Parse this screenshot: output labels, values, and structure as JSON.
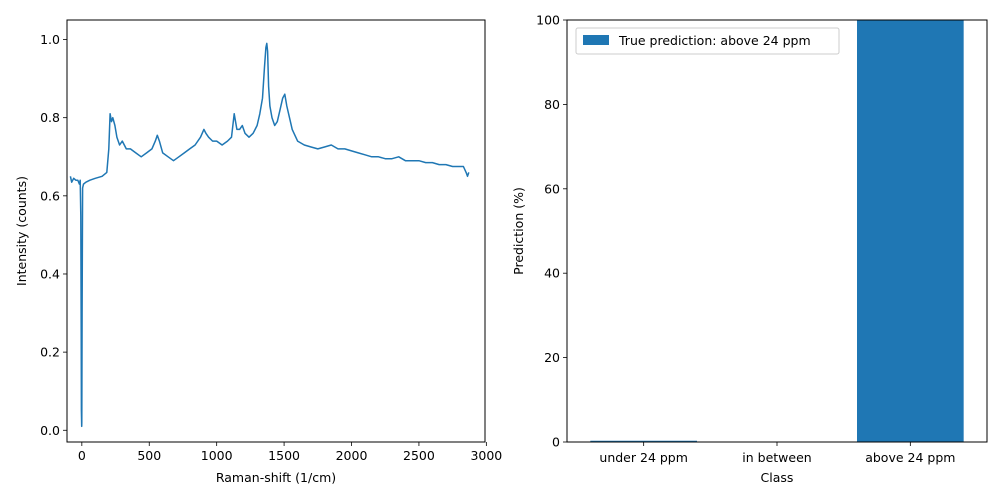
{
  "colors": {
    "series": "#1f77b4",
    "axis": "#000000",
    "background": "#ffffff"
  },
  "chart_data": [
    {
      "type": "line",
      "xlabel": "Raman-shift (1/cm)",
      "ylabel": "Intensity (counts)",
      "xlim": [
        -110,
        2990
      ],
      "ylim": [
        -0.03,
        1.05
      ],
      "xticks": [
        0,
        500,
        1000,
        1500,
        2000,
        2500,
        3000
      ],
      "yticks": [
        0.0,
        0.2,
        0.4,
        0.6,
        0.8,
        1.0
      ],
      "xtick_labels": [
        "0",
        "500",
        "1000",
        "1500",
        "2000",
        "2500",
        "3000"
      ],
      "ytick_labels": [
        "0.0",
        "0.2",
        "0.4",
        "0.6",
        "0.8",
        "1.0"
      ],
      "grid": false,
      "series": [
        {
          "x": [
            -85,
            -75,
            -60,
            -45,
            -30,
            -18,
            -12,
            -8,
            -5,
            -3,
            -1,
            0,
            2,
            6,
            12,
            30,
            60,
            100,
            150,
            185,
            200,
            210,
            220,
            230,
            245,
            260,
            280,
            300,
            330,
            360,
            400,
            440,
            480,
            520,
            545,
            560,
            575,
            600,
            640,
            680,
            720,
            760,
            800,
            840,
            880,
            905,
            920,
            940,
            970,
            1000,
            1040,
            1080,
            1110,
            1130,
            1150,
            1170,
            1190,
            1210,
            1240,
            1270,
            1300,
            1320,
            1340,
            1355,
            1365,
            1372,
            1378,
            1385,
            1395,
            1410,
            1430,
            1450,
            1470,
            1490,
            1505,
            1520,
            1540,
            1560,
            1600,
            1650,
            1700,
            1750,
            1800,
            1850,
            1900,
            1950,
            2000,
            2050,
            2100,
            2150,
            2200,
            2250,
            2300,
            2350,
            2400,
            2450,
            2500,
            2550,
            2600,
            2650,
            2700,
            2750,
            2800,
            2830,
            2850,
            2860,
            2870
          ],
          "y": [
            0.65,
            0.635,
            0.645,
            0.64,
            0.64,
            0.63,
            0.64,
            0.55,
            0.25,
            0.05,
            0.01,
            0.02,
            0.3,
            0.62,
            0.63,
            0.635,
            0.64,
            0.645,
            0.65,
            0.66,
            0.72,
            0.81,
            0.79,
            0.8,
            0.78,
            0.75,
            0.73,
            0.74,
            0.72,
            0.72,
            0.71,
            0.7,
            0.71,
            0.72,
            0.74,
            0.755,
            0.74,
            0.71,
            0.7,
            0.69,
            0.7,
            0.71,
            0.72,
            0.73,
            0.75,
            0.77,
            0.76,
            0.75,
            0.74,
            0.74,
            0.73,
            0.74,
            0.75,
            0.81,
            0.77,
            0.77,
            0.78,
            0.76,
            0.75,
            0.76,
            0.78,
            0.81,
            0.85,
            0.93,
            0.98,
            0.99,
            0.97,
            0.88,
            0.83,
            0.8,
            0.78,
            0.79,
            0.82,
            0.85,
            0.86,
            0.83,
            0.8,
            0.77,
            0.74,
            0.73,
            0.725,
            0.72,
            0.725,
            0.73,
            0.72,
            0.72,
            0.715,
            0.71,
            0.705,
            0.7,
            0.7,
            0.695,
            0.695,
            0.7,
            0.69,
            0.69,
            0.69,
            0.685,
            0.685,
            0.68,
            0.68,
            0.675,
            0.675,
            0.675,
            0.66,
            0.65,
            0.66
          ]
        }
      ]
    },
    {
      "type": "bar",
      "xlabel": "Class",
      "ylabel": "Prediction (%)",
      "categories": [
        "under 24 ppm",
        "in between",
        "above 24 ppm"
      ],
      "values": [
        0.3,
        0.0,
        100.0
      ],
      "ylim": [
        0,
        100
      ],
      "yticks": [
        0,
        20,
        40,
        60,
        80,
        100
      ],
      "ytick_labels": [
        "0",
        "20",
        "40",
        "60",
        "80",
        "100"
      ],
      "grid": false,
      "legend": {
        "position": "top-left",
        "entries": [
          "True prediction: above 24 ppm"
        ]
      }
    }
  ]
}
